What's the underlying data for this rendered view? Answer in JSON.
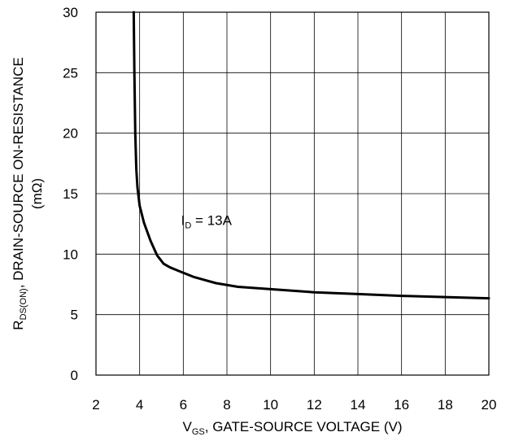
{
  "chart_data": {
    "type": "line",
    "xlabel": {
      "prefix": "V",
      "sub": "GS",
      "suffix": ", GATE-SOURCE VOLTAGE (V)"
    },
    "ylabel": {
      "prefix": "R",
      "sub": "DS(ON)",
      "suffix": ", DRAIN-SOURCE ON-RESISTANCE",
      "line2": "(mΩ)"
    },
    "xlim": [
      2,
      20
    ],
    "ylim": [
      0,
      30
    ],
    "x_ticks": [
      "2",
      "4",
      "6",
      "8",
      "10",
      "12",
      "14",
      "16",
      "18",
      "20"
    ],
    "y_ticks": [
      "0",
      "5",
      "10",
      "15",
      "20",
      "25",
      "30"
    ],
    "grid": true,
    "legend": "none",
    "annotation": {
      "prefix": "I",
      "sub": "D",
      "suffix": " = 13A",
      "x": 5.9,
      "y": 12.4
    },
    "series": [
      {
        "line_color": "#000000",
        "x": [
          3.73,
          3.76,
          3.8,
          3.85,
          3.9,
          4.0,
          4.2,
          4.5,
          4.8,
          5.1,
          5.4,
          5.8,
          6.5,
          7.5,
          8.5,
          10,
          12,
          14,
          16,
          18,
          20
        ],
        "y": [
          30,
          25,
          20,
          17,
          15.5,
          14,
          12.6,
          11.1,
          9.9,
          9.2,
          8.9,
          8.6,
          8.1,
          7.6,
          7.3,
          7.1,
          6.85,
          6.7,
          6.55,
          6.45,
          6.35
        ]
      }
    ]
  }
}
